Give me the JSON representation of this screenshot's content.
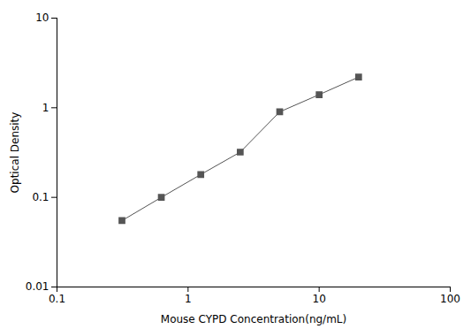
{
  "chart_data": {
    "type": "line",
    "x": [
      0.313,
      0.625,
      1.25,
      2.5,
      5,
      10,
      20
    ],
    "values": [
      0.055,
      0.1,
      0.18,
      0.32,
      0.9,
      1.4,
      2.2
    ],
    "xlabel": "Mouse CYPD Concentration(ng/mL)",
    "ylabel": "Optical Density",
    "xlim": [
      0.1,
      100
    ],
    "ylim": [
      0.01,
      10
    ],
    "xticks": [
      0.1,
      1,
      10,
      100
    ],
    "yticks": [
      0.01,
      0.1,
      1,
      10
    ],
    "log": true,
    "grid": false,
    "color": "#555555",
    "marker": "square"
  }
}
